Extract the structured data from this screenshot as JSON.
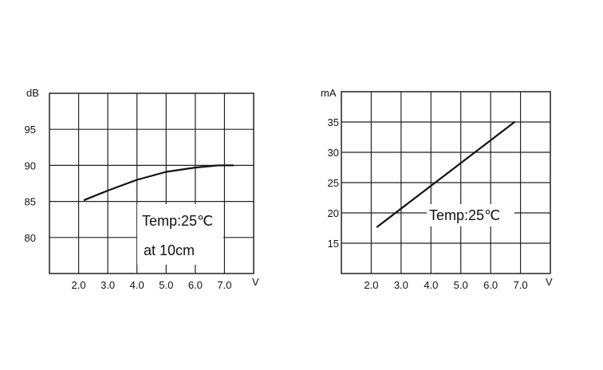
{
  "chart_data": [
    {
      "type": "line",
      "ylabel": "dB",
      "xlabel": "V",
      "x_ticks": [
        "2.0",
        "3.0",
        "4.0",
        "5.0",
        "6.0",
        "7.0"
      ],
      "y_ticks": [
        "80",
        "85",
        "90",
        "95"
      ],
      "xlim": [
        1.0,
        8.0
      ],
      "ylim": [
        75,
        100
      ],
      "grid": true,
      "annotations": [
        "Temp:25℃",
        "at 10cm"
      ],
      "series": [
        {
          "x": [
            2.2,
            3.0,
            4.0,
            5.0,
            6.0,
            6.8,
            7.3
          ],
          "y": [
            85.2,
            86.5,
            88.0,
            89.1,
            89.7,
            90.0,
            90.0
          ]
        }
      ]
    },
    {
      "type": "line",
      "ylabel": "mA",
      "xlabel": "V",
      "x_ticks": [
        "2.0",
        "3.0",
        "4.0",
        "5.0",
        "6.0",
        "7.0"
      ],
      "y_ticks": [
        "15",
        "20",
        "25",
        "30",
        "35"
      ],
      "xlim": [
        1.0,
        8.0
      ],
      "ylim": [
        10,
        40
      ],
      "grid": true,
      "annotations": [
        "Temp:25℃"
      ],
      "series": [
        {
          "x": [
            2.2,
            6.8
          ],
          "y": [
            17.7,
            35.0
          ]
        }
      ]
    }
  ]
}
